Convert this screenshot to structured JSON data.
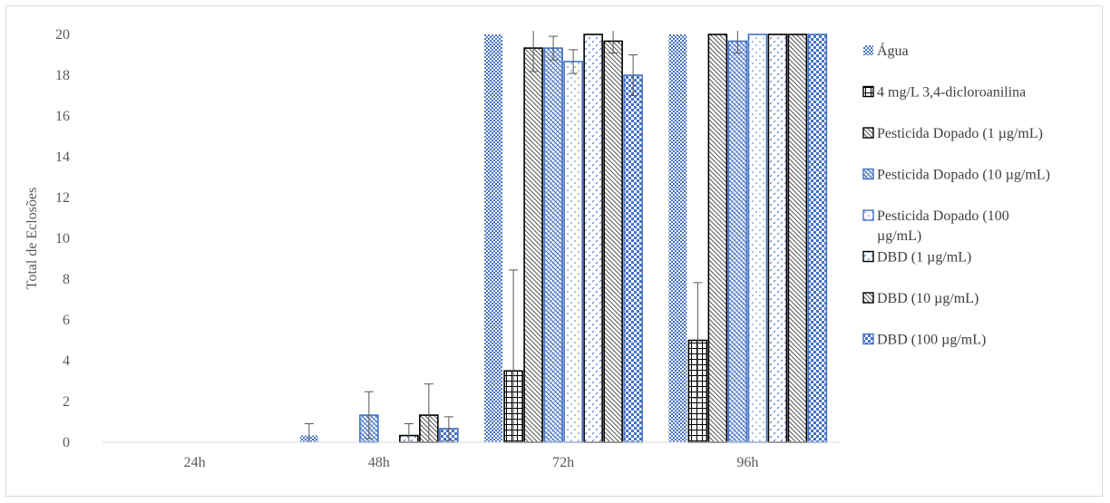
{
  "chart_data": {
    "type": "bar",
    "title": "",
    "xlabel": "",
    "ylabel": "Total de Eclosões",
    "ylim": [
      0,
      20
    ],
    "yticks": [
      0,
      2,
      4,
      6,
      8,
      10,
      12,
      14,
      16,
      18,
      20
    ],
    "grid": false,
    "legend_position": "right",
    "categories": [
      "24h",
      "48h",
      "72h",
      "96h"
    ],
    "series": [
      {
        "name": "Água",
        "values": [
          0,
          0.33,
          20,
          20
        ],
        "errors": [
          0,
          0.58,
          0,
          0
        ],
        "pattern": "dots",
        "color": "#4472C4"
      },
      {
        "name": "4 mg/L 3,4-dicloroanilina",
        "values": [
          0,
          0,
          3.5,
          5
        ],
        "errors": [
          0,
          0,
          4.95,
          2.83
        ],
        "pattern": "grid",
        "color": "#000000"
      },
      {
        "name": "Pesticida Dopado (1 µg/mL)",
        "values": [
          0,
          0,
          19.33,
          20
        ],
        "errors": [
          0,
          0,
          1.15,
          0
        ],
        "pattern": "diag",
        "color": "#000000"
      },
      {
        "name": "Pesticida Dopado  (10 µg/mL)",
        "values": [
          0,
          1.33,
          19.33,
          19.67
        ],
        "errors": [
          0,
          1.15,
          0.58,
          0.58
        ],
        "pattern": "diag",
        "color": "#4472C4"
      },
      {
        "name": "Pesticida Dopado  (100 µg/mL)",
        "values": [
          0,
          0,
          18.67,
          20
        ],
        "errors": [
          0,
          0,
          0.58,
          0
        ],
        "pattern": "dots",
        "color": "#4472C4"
      },
      {
        "name": "DBD (1 µg/mL)",
        "values": [
          0,
          0.33,
          20,
          20
        ],
        "errors": [
          0,
          0.58,
          0,
          0
        ],
        "pattern": "dash",
        "color": "#000000"
      },
      {
        "name": "DBD (10 µg/mL)",
        "values": [
          0,
          1.33,
          19.67,
          20
        ],
        "errors": [
          0,
          1.53,
          0.58,
          0
        ],
        "pattern": "diag",
        "color": "#000000"
      },
      {
        "name": "DBD (100 µg/mL)",
        "values": [
          0,
          0.67,
          18,
          20
        ],
        "errors": [
          0,
          0.58,
          1.0,
          0
        ],
        "pattern": "checker",
        "color": "#4472C4"
      }
    ]
  }
}
